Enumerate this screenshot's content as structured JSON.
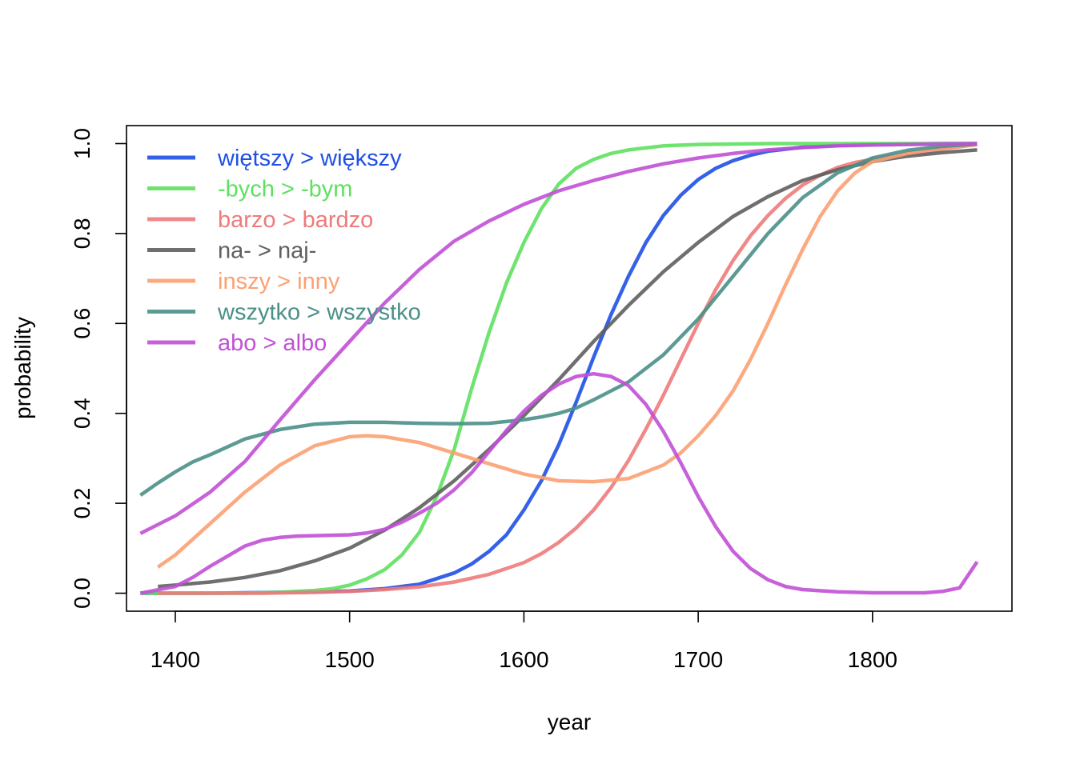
{
  "chart_data": {
    "type": "line",
    "title": "",
    "xlabel": "year",
    "ylabel": "probability",
    "xlim": [
      1372,
      1880
    ],
    "ylim": [
      -0.04,
      1.04
    ],
    "x_ticks": [
      1400,
      1500,
      1600,
      1700,
      1800
    ],
    "y_ticks": [
      0.0,
      0.2,
      0.4,
      0.6,
      0.8,
      1.0
    ],
    "x_tick_labels": [
      "1400",
      "1500",
      "1600",
      "1700",
      "1800"
    ],
    "y_tick_labels": [
      "0.0",
      "0.2",
      "0.4",
      "0.6",
      "0.8",
      "1.0"
    ],
    "grid": false,
    "legend_position": "top-left",
    "series": [
      {
        "name": "więtszy > większy",
        "color": "#1f4fe6",
        "x": [
          1380,
          1400,
          1420,
          1440,
          1460,
          1480,
          1500,
          1520,
          1540,
          1560,
          1570,
          1580,
          1590,
          1600,
          1610,
          1620,
          1630,
          1640,
          1650,
          1660,
          1670,
          1680,
          1690,
          1700,
          1710,
          1720,
          1730,
          1740,
          1760,
          1780,
          1800,
          1820,
          1840,
          1860
        ],
        "y": [
          0.0,
          0.0,
          0.0,
          0.001,
          0.002,
          0.003,
          0.005,
          0.01,
          0.02,
          0.045,
          0.065,
          0.093,
          0.13,
          0.185,
          0.25,
          0.33,
          0.425,
          0.525,
          0.62,
          0.705,
          0.78,
          0.84,
          0.885,
          0.92,
          0.945,
          0.962,
          0.974,
          0.983,
          0.992,
          0.996,
          0.998,
          0.999,
          1.0,
          1.0
        ]
      },
      {
        "name": "-bych > -bym",
        "color": "#5ee060",
        "x": [
          1380,
          1400,
          1420,
          1440,
          1460,
          1480,
          1490,
          1500,
          1510,
          1520,
          1530,
          1540,
          1550,
          1560,
          1570,
          1580,
          1590,
          1600,
          1610,
          1620,
          1630,
          1640,
          1650,
          1660,
          1680,
          1700,
          1740,
          1800,
          1860
        ],
        "y": [
          0.0,
          0.0,
          0.0,
          0.0,
          0.002,
          0.006,
          0.01,
          0.018,
          0.032,
          0.052,
          0.085,
          0.135,
          0.215,
          0.32,
          0.455,
          0.58,
          0.69,
          0.78,
          0.855,
          0.91,
          0.945,
          0.965,
          0.978,
          0.986,
          0.995,
          0.998,
          1.0,
          1.0,
          1.0
        ]
      },
      {
        "name": "barzo > bardzo",
        "color": "#ee7b7b",
        "x": [
          1390,
          1420,
          1450,
          1480,
          1500,
          1520,
          1540,
          1560,
          1580,
          1600,
          1610,
          1620,
          1630,
          1640,
          1650,
          1660,
          1670,
          1680,
          1690,
          1700,
          1710,
          1720,
          1730,
          1740,
          1750,
          1760,
          1770,
          1780,
          1790,
          1800,
          1820,
          1840,
          1860
        ],
        "y": [
          0.0,
          0.0,
          0.0,
          0.002,
          0.004,
          0.008,
          0.014,
          0.025,
          0.042,
          0.068,
          0.088,
          0.113,
          0.145,
          0.185,
          0.235,
          0.295,
          0.365,
          0.44,
          0.52,
          0.6,
          0.675,
          0.74,
          0.795,
          0.84,
          0.878,
          0.908,
          0.93,
          0.947,
          0.958,
          0.965,
          0.978,
          0.988,
          0.998
        ]
      },
      {
        "name": "na- > naj-",
        "color": "#5f5f5f",
        "x": [
          1390,
          1400,
          1420,
          1440,
          1460,
          1480,
          1500,
          1520,
          1540,
          1560,
          1580,
          1600,
          1620,
          1640,
          1660,
          1680,
          1700,
          1720,
          1740,
          1760,
          1780,
          1800,
          1820,
          1840,
          1860
        ],
        "y": [
          0.015,
          0.018,
          0.025,
          0.035,
          0.05,
          0.072,
          0.1,
          0.14,
          0.19,
          0.25,
          0.32,
          0.395,
          0.475,
          0.56,
          0.64,
          0.715,
          0.78,
          0.838,
          0.882,
          0.918,
          0.942,
          0.96,
          0.972,
          0.98,
          0.986
        ]
      },
      {
        "name": "inszy > inny",
        "color": "#fca072",
        "x": [
          1390,
          1400,
          1420,
          1440,
          1460,
          1480,
          1500,
          1510,
          1520,
          1540,
          1560,
          1580,
          1600,
          1620,
          1640,
          1660,
          1680,
          1690,
          1700,
          1710,
          1720,
          1730,
          1740,
          1750,
          1760,
          1770,
          1780,
          1790,
          1800,
          1820,
          1840,
          1860
        ],
        "y": [
          0.058,
          0.085,
          0.155,
          0.225,
          0.285,
          0.328,
          0.348,
          0.35,
          0.348,
          0.335,
          0.312,
          0.288,
          0.265,
          0.25,
          0.248,
          0.255,
          0.285,
          0.312,
          0.35,
          0.395,
          0.45,
          0.52,
          0.6,
          0.685,
          0.765,
          0.838,
          0.895,
          0.935,
          0.96,
          0.978,
          0.99,
          0.998
        ]
      },
      {
        "name": "wszytko > wszystko",
        "color": "#4a9088",
        "x": [
          1380,
          1390,
          1400,
          1410,
          1420,
          1440,
          1460,
          1480,
          1500,
          1520,
          1540,
          1560,
          1580,
          1600,
          1610,
          1620,
          1630,
          1640,
          1660,
          1680,
          1700,
          1720,
          1740,
          1760,
          1780,
          1800,
          1820,
          1840,
          1860
        ],
        "y": [
          0.218,
          0.245,
          0.27,
          0.292,
          0.308,
          0.343,
          0.364,
          0.376,
          0.38,
          0.38,
          0.378,
          0.377,
          0.378,
          0.386,
          0.392,
          0.4,
          0.412,
          0.43,
          0.47,
          0.53,
          0.61,
          0.705,
          0.8,
          0.88,
          0.935,
          0.968,
          0.985,
          0.994,
          0.999
        ]
      },
      {
        "name": "abo > albo",
        "color": "#c150d6",
        "x": [
          1380,
          1400,
          1420,
          1440,
          1460,
          1480,
          1500,
          1520,
          1540,
          1560,
          1580,
          1600,
          1620,
          1640,
          1660,
          1680,
          1700,
          1720,
          1740,
          1760,
          1780,
          1800,
          1820,
          1840,
          1860
        ],
        "y": [
          0.133,
          0.172,
          0.225,
          0.293,
          0.385,
          0.475,
          0.56,
          0.645,
          0.72,
          0.783,
          0.828,
          0.865,
          0.895,
          0.918,
          0.938,
          0.955,
          0.968,
          0.978,
          0.986,
          0.991,
          0.995,
          0.997,
          0.998,
          0.999,
          1.0
        ]
      },
      {
        "name": "",
        "color": "#c150d6",
        "x": [
          1380,
          1400,
          1410,
          1420,
          1440,
          1450,
          1460,
          1470,
          1480,
          1500,
          1510,
          1520,
          1530,
          1540,
          1550,
          1560,
          1570,
          1580,
          1590,
          1600,
          1610,
          1620,
          1630,
          1640,
          1650,
          1660,
          1670,
          1680,
          1690,
          1700,
          1710,
          1720,
          1730,
          1740,
          1750,
          1760,
          1780,
          1800,
          1820,
          1830,
          1840,
          1850,
          1860
        ],
        "y": [
          0.0,
          0.015,
          0.035,
          0.06,
          0.105,
          0.118,
          0.124,
          0.127,
          0.128,
          0.13,
          0.134,
          0.142,
          0.158,
          0.178,
          0.2,
          0.23,
          0.268,
          0.315,
          0.362,
          0.405,
          0.44,
          0.465,
          0.482,
          0.488,
          0.482,
          0.462,
          0.42,
          0.36,
          0.29,
          0.215,
          0.148,
          0.093,
          0.055,
          0.03,
          0.015,
          0.008,
          0.003,
          0.001,
          0.001,
          0.001,
          0.004,
          0.012,
          0.07
        ]
      }
    ]
  }
}
